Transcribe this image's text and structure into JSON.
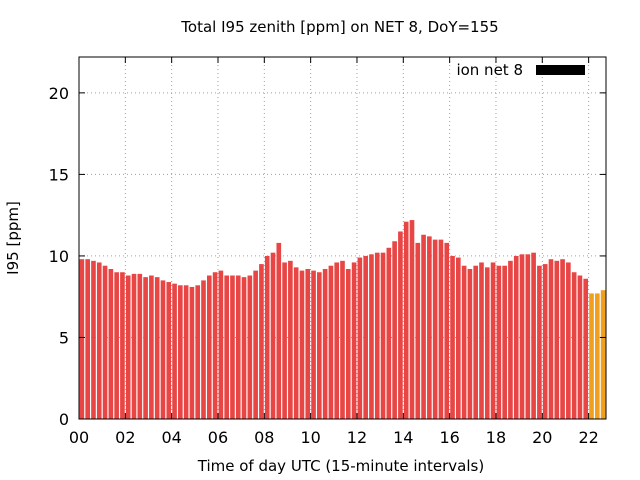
{
  "chart_data": {
    "type": "bar",
    "title": "Total I95 zenith [ppm] on NET 8, DoY=155",
    "xlabel": "Time of day UTC (15-minute intervals)",
    "ylabel": "I95 [ppm]",
    "xlim": [
      0,
      22.75
    ],
    "ylim": [
      0,
      22.2
    ],
    "x_ticks": [
      0,
      2,
      4,
      6,
      8,
      10,
      12,
      14,
      16,
      18,
      20,
      22
    ],
    "x_tick_labels": [
      "00",
      "02",
      "04",
      "06",
      "08",
      "10",
      "12",
      "14",
      "16",
      "18",
      "20",
      "22"
    ],
    "y_ticks": [
      0,
      5,
      10,
      15,
      20
    ],
    "y_tick_labels": [
      "0",
      "5",
      "10",
      "15",
      "20"
    ],
    "grid": true,
    "legend": {
      "label": "ion net 8",
      "color": "#000000",
      "placement": "top-right"
    },
    "bar_interval_hours": 0.25,
    "colors": {
      "primary": "#e84545",
      "recent": "#f0a01e"
    },
    "bar_colors": [
      "primary",
      "primary",
      "primary",
      "primary",
      "primary",
      "primary",
      "primary",
      "primary",
      "primary",
      "primary",
      "primary",
      "primary",
      "primary",
      "primary",
      "primary",
      "primary",
      "primary",
      "primary",
      "primary",
      "primary",
      "primary",
      "primary",
      "primary",
      "primary",
      "primary",
      "primary",
      "primary",
      "primary",
      "primary",
      "primary",
      "primary",
      "primary",
      "primary",
      "primary",
      "primary",
      "primary",
      "primary",
      "primary",
      "primary",
      "primary",
      "primary",
      "primary",
      "primary",
      "primary",
      "primary",
      "primary",
      "primary",
      "primary",
      "primary",
      "primary",
      "primary",
      "primary",
      "primary",
      "primary",
      "primary",
      "primary",
      "primary",
      "primary",
      "primary",
      "primary",
      "primary",
      "primary",
      "primary",
      "primary",
      "primary",
      "primary",
      "primary",
      "primary",
      "primary",
      "primary",
      "primary",
      "primary",
      "primary",
      "primary",
      "primary",
      "primary",
      "primary",
      "primary",
      "primary",
      "primary",
      "primary",
      "primary",
      "primary",
      "primary",
      "primary",
      "primary",
      "primary",
      "primary",
      "recent",
      "recent",
      "recent"
    ],
    "x": [
      0,
      0.25,
      0.5,
      0.75,
      1,
      1.25,
      1.5,
      1.75,
      2,
      2.25,
      2.5,
      2.75,
      3,
      3.25,
      3.5,
      3.75,
      4,
      4.25,
      4.5,
      4.75,
      5,
      5.25,
      5.5,
      5.75,
      6,
      6.25,
      6.5,
      6.75,
      7,
      7.25,
      7.5,
      7.75,
      8,
      8.25,
      8.5,
      8.75,
      9,
      9.25,
      9.5,
      9.75,
      10,
      10.25,
      10.5,
      10.75,
      11,
      11.25,
      11.5,
      11.75,
      12,
      12.25,
      12.5,
      12.75,
      13,
      13.25,
      13.5,
      13.75,
      14,
      14.25,
      14.5,
      14.75,
      15,
      15.25,
      15.5,
      15.75,
      16,
      16.25,
      16.5,
      16.75,
      17,
      17.25,
      17.5,
      17.75,
      18,
      18.25,
      18.5,
      18.75,
      19,
      19.25,
      19.5,
      19.75,
      20,
      20.25,
      20.5,
      20.75,
      21,
      21.25,
      21.5,
      21.75,
      22,
      22.25,
      22.5
    ],
    "values": [
      9.8,
      9.8,
      9.7,
      9.6,
      9.4,
      9.2,
      9.0,
      9.0,
      8.8,
      8.9,
      8.9,
      8.7,
      8.8,
      8.7,
      8.5,
      8.4,
      8.3,
      8.2,
      8.2,
      8.1,
      8.2,
      8.5,
      8.8,
      9.0,
      9.1,
      8.8,
      8.8,
      8.8,
      8.7,
      8.8,
      9.1,
      9.5,
      10.0,
      10.2,
      10.8,
      9.6,
      9.7,
      9.3,
      9.1,
      9.2,
      9.1,
      9.0,
      9.2,
      9.4,
      9.6,
      9.7,
      9.2,
      9.6,
      9.9,
      10.0,
      10.1,
      10.2,
      10.2,
      10.5,
      10.9,
      11.5,
      12.1,
      12.2,
      10.8,
      11.3,
      11.2,
      11.0,
      11.0,
      10.8,
      10.0,
      9.9,
      9.4,
      9.2,
      9.4,
      9.6,
      9.3,
      9.6,
      9.4,
      9.4,
      9.7,
      10.0,
      10.1,
      10.1,
      10.2,
      9.4,
      9.5,
      9.8,
      9.7,
      9.8,
      9.6,
      9.0,
      8.8,
      8.6,
      7.7,
      7.7,
      7.9
    ]
  }
}
